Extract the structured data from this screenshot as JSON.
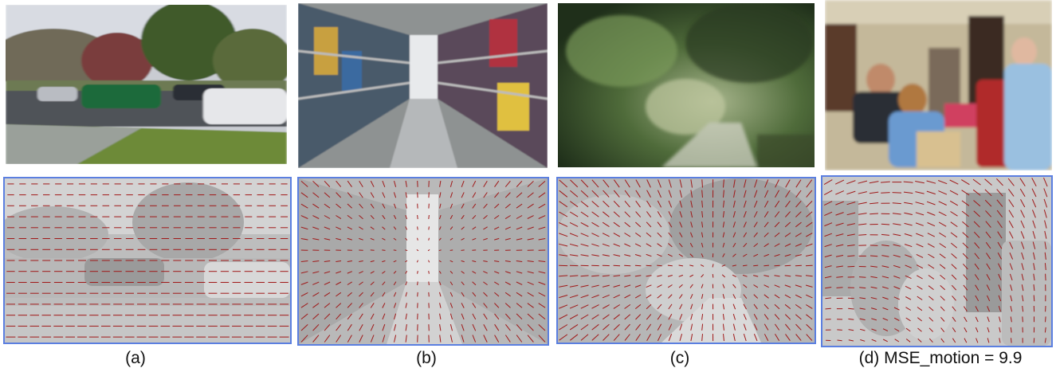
{
  "captions": {
    "a": "(a)",
    "b": "(b)",
    "c": "(c)",
    "d": "(d) MSE_motion = 9.9"
  },
  "colors": {
    "flow_border": "#5b7fe0",
    "flow_arrow": "#a01818"
  }
}
